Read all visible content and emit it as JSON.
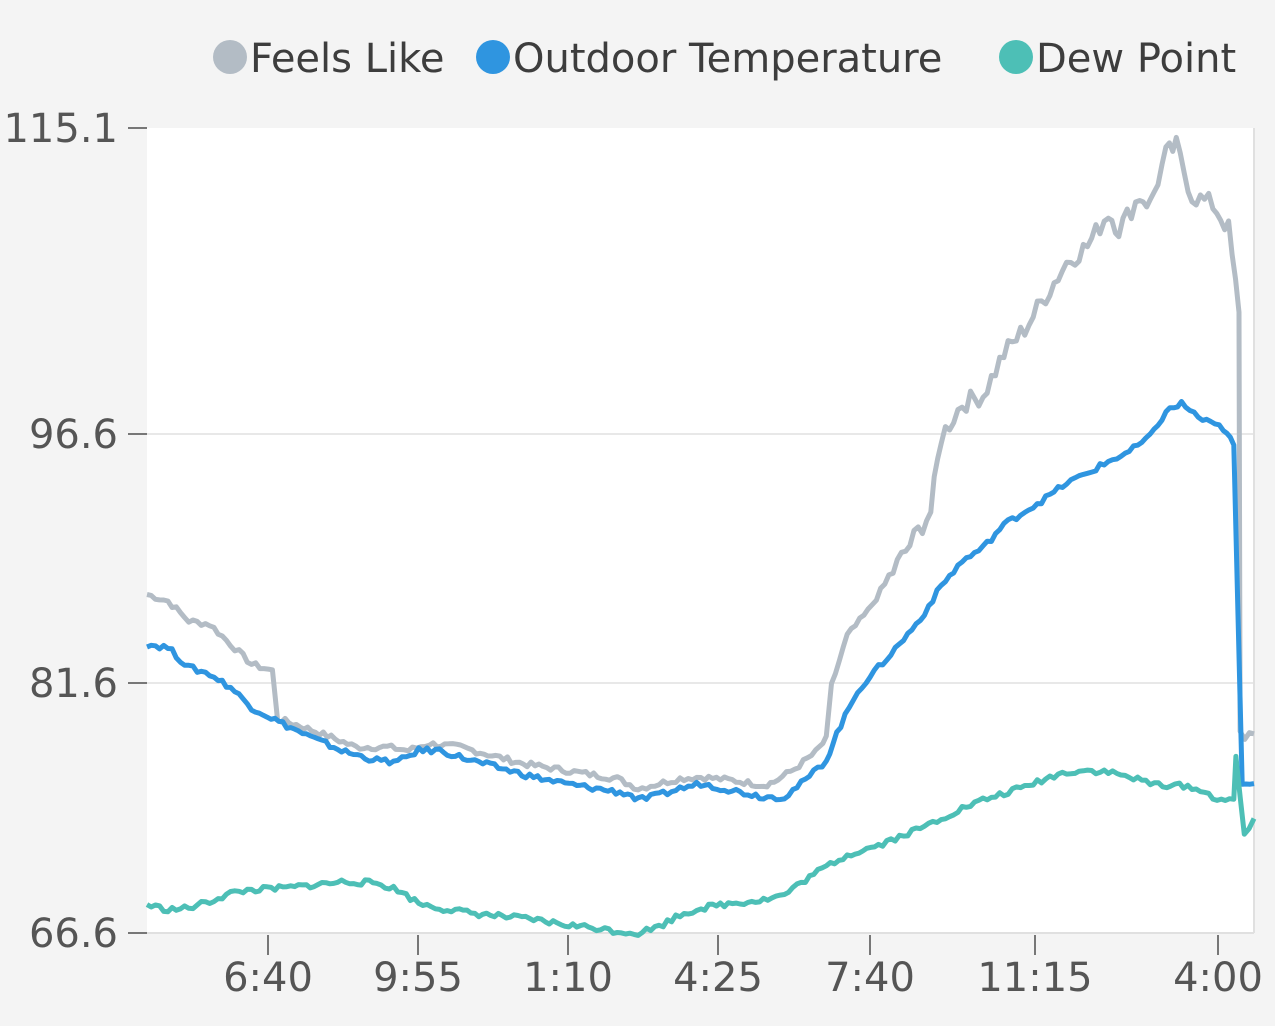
{
  "chart_data": {
    "type": "line",
    "title": "",
    "xlabel": "",
    "ylabel": "",
    "ylim": [
      66.6,
      115.1
    ],
    "y_ticks": [
      "115.1",
      "96.6",
      "81.6",
      "66.6"
    ],
    "x_ticks": [
      "6:40",
      "9:55",
      "1:10",
      "4:25",
      "7:40",
      "11:15",
      "4:00"
    ],
    "grid": "horizontal",
    "legend_position": "top-right",
    "series": [
      {
        "name": "Feels Like",
        "color": "#b3bcc5",
        "points": [
          [
            0,
            87.0
          ],
          [
            0.02,
            86.6
          ],
          [
            0.04,
            85.4
          ],
          [
            0.06,
            85.2
          ],
          [
            0.08,
            84.0
          ],
          [
            0.1,
            82.8
          ],
          [
            0.12,
            82.4
          ],
          [
            0.125,
            79.5
          ],
          [
            0.15,
            79.0
          ],
          [
            0.18,
            78.3
          ],
          [
            0.2,
            77.8
          ],
          [
            0.23,
            77.8
          ],
          [
            0.25,
            77.6
          ],
          [
            0.27,
            78.0
          ],
          [
            0.3,
            77.8
          ],
          [
            0.33,
            77.3
          ],
          [
            0.36,
            76.8
          ],
          [
            0.39,
            76.5
          ],
          [
            0.42,
            76.2
          ],
          [
            0.45,
            75.9
          ],
          [
            0.47,
            75.3
          ],
          [
            0.49,
            75.6
          ],
          [
            0.51,
            75.9
          ],
          [
            0.53,
            76.0
          ],
          [
            0.56,
            75.8
          ],
          [
            0.59,
            75.5
          ],
          [
            0.6,
            75.7
          ],
          [
            0.62,
            76.5
          ],
          [
            0.64,
            77.5
          ],
          [
            0.65,
            78.3
          ],
          [
            0.655,
            81.5
          ],
          [
            0.67,
            84.5
          ],
          [
            0.69,
            86.0
          ],
          [
            0.71,
            88.0
          ],
          [
            0.73,
            90.0
          ],
          [
            0.75,
            92.0
          ],
          [
            0.76,
            96.5
          ],
          [
            0.78,
            98.5
          ],
          [
            0.8,
            99.0
          ],
          [
            0.82,
            101.5
          ],
          [
            0.84,
            103.0
          ],
          [
            0.86,
            105.0
          ],
          [
            0.88,
            107.0
          ],
          [
            0.9,
            108.0
          ],
          [
            0.92,
            110.0
          ],
          [
            0.93,
            109.0
          ],
          [
            0.95,
            111.0
          ],
          [
            0.96,
            110.5
          ],
          [
            0.975,
            113.5
          ],
          [
            0.985,
            114.0
          ],
          [
            1.0,
            111.0
          ],
          [
            1.02,
            110.5
          ],
          [
            1.035,
            109.0
          ],
          [
            1.045,
            104.0
          ],
          [
            1.046,
            78.5
          ],
          [
            1.06,
            78.6
          ]
        ]
      },
      {
        "name": "Outdoor Temperature",
        "color": "#2f95e0",
        "points": [
          [
            0,
            84.0
          ],
          [
            0.02,
            83.8
          ],
          [
            0.04,
            82.6
          ],
          [
            0.06,
            82.2
          ],
          [
            0.08,
            81.4
          ],
          [
            0.1,
            80.2
          ],
          [
            0.13,
            79.2
          ],
          [
            0.16,
            78.3
          ],
          [
            0.19,
            77.5
          ],
          [
            0.22,
            77.0
          ],
          [
            0.24,
            76.9
          ],
          [
            0.26,
            77.6
          ],
          [
            0.28,
            77.6
          ],
          [
            0.31,
            77.0
          ],
          [
            0.34,
            76.5
          ],
          [
            0.37,
            76.0
          ],
          [
            0.4,
            75.6
          ],
          [
            0.43,
            75.3
          ],
          [
            0.46,
            75.0
          ],
          [
            0.47,
            74.6
          ],
          [
            0.49,
            74.9
          ],
          [
            0.51,
            75.3
          ],
          [
            0.53,
            75.6
          ],
          [
            0.56,
            75.2
          ],
          [
            0.59,
            74.8
          ],
          [
            0.61,
            74.8
          ],
          [
            0.63,
            75.8
          ],
          [
            0.65,
            77.0
          ],
          [
            0.66,
            78.6
          ],
          [
            0.68,
            81.2
          ],
          [
            0.7,
            82.6
          ],
          [
            0.72,
            84.0
          ],
          [
            0.74,
            85.5
          ],
          [
            0.76,
            87.5
          ],
          [
            0.78,
            89.0
          ],
          [
            0.8,
            89.8
          ],
          [
            0.82,
            91.2
          ],
          [
            0.84,
            92.0
          ],
          [
            0.86,
            92.8
          ],
          [
            0.88,
            93.7
          ],
          [
            0.9,
            94.3
          ],
          [
            0.92,
            95.0
          ],
          [
            0.94,
            95.6
          ],
          [
            0.96,
            96.5
          ],
          [
            0.975,
            98.0
          ],
          [
            0.99,
            98.5
          ],
          [
            1.01,
            97.5
          ],
          [
            1.03,
            97.0
          ],
          [
            1.04,
            96.0
          ],
          [
            1.048,
            75.5
          ],
          [
            1.06,
            75.6
          ]
        ]
      },
      {
        "name": "Dew Point",
        "color": "#4dbfb6",
        "points": [
          [
            0,
            68.3
          ],
          [
            0.02,
            68.0
          ],
          [
            0.04,
            68.1
          ],
          [
            0.06,
            68.5
          ],
          [
            0.08,
            69.0
          ],
          [
            0.1,
            69.2
          ],
          [
            0.13,
            69.3
          ],
          [
            0.16,
            69.5
          ],
          [
            0.19,
            69.7
          ],
          [
            0.22,
            69.6
          ],
          [
            0.24,
            69.2
          ],
          [
            0.26,
            68.4
          ],
          [
            0.28,
            68.1
          ],
          [
            0.31,
            67.8
          ],
          [
            0.34,
            67.6
          ],
          [
            0.37,
            67.4
          ],
          [
            0.4,
            67.1
          ],
          [
            0.43,
            66.9
          ],
          [
            0.45,
            66.7
          ],
          [
            0.47,
            66.6
          ],
          [
            0.49,
            67.0
          ],
          [
            0.51,
            67.7
          ],
          [
            0.53,
            68.1
          ],
          [
            0.56,
            68.4
          ],
          [
            0.59,
            68.6
          ],
          [
            0.61,
            68.9
          ],
          [
            0.63,
            69.8
          ],
          [
            0.65,
            70.6
          ],
          [
            0.67,
            71.3
          ],
          [
            0.7,
            71.9
          ],
          [
            0.72,
            72.4
          ],
          [
            0.74,
            72.9
          ],
          [
            0.76,
            73.5
          ],
          [
            0.78,
            74.1
          ],
          [
            0.8,
            74.6
          ],
          [
            0.82,
            75.0
          ],
          [
            0.84,
            75.4
          ],
          [
            0.86,
            75.9
          ],
          [
            0.88,
            76.3
          ],
          [
            0.9,
            76.4
          ],
          [
            0.92,
            76.3
          ],
          [
            0.94,
            76.0
          ],
          [
            0.96,
            75.6
          ],
          [
            0.98,
            75.5
          ],
          [
            1.0,
            75.4
          ],
          [
            1.02,
            74.8
          ],
          [
            1.04,
            74.5
          ],
          [
            1.042,
            77.2
          ],
          [
            1.05,
            72.5
          ],
          [
            1.06,
            73.5
          ]
        ]
      }
    ]
  }
}
